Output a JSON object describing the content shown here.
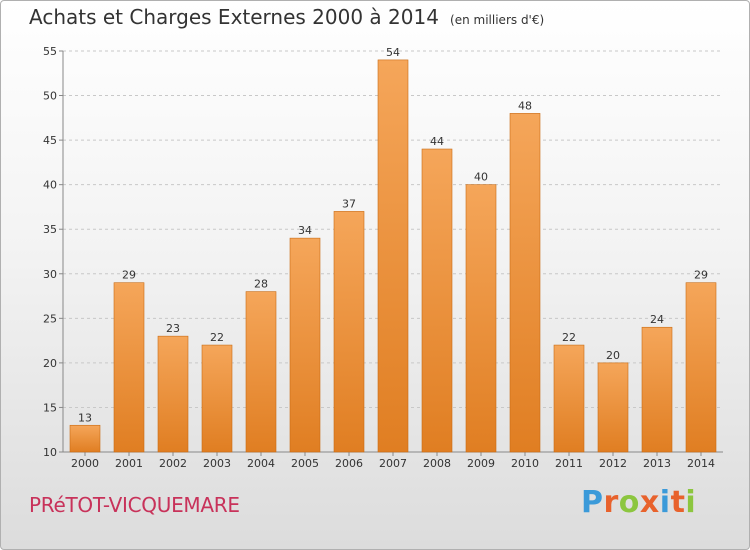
{
  "header": {
    "title": "Achats et Charges Externes 2000 à 2014",
    "unit": "(en milliers d'€)"
  },
  "footer": {
    "commune": "PRéTOT-VICQUEMARE",
    "logo": "Proxiti"
  },
  "colors": {
    "bar_top": "#f5a65a",
    "bar_bottom": "#e07e22",
    "bar_edge": "#c86c15",
    "grid": "#c8c8c8",
    "commune_text": "#c8325a",
    "logo_letters": [
      "#3b9ad9",
      "#e8622c",
      "#8cc63f",
      "#e8622c",
      "#3b9ad9",
      "#e8622c",
      "#8cc63f"
    ]
  },
  "chart_data": {
    "type": "bar",
    "title": "Achats et Charges Externes 2000 à 2014",
    "subtitle": "(en milliers d'€)",
    "xlabel": "",
    "ylabel": "",
    "categories": [
      "2000",
      "2001",
      "2002",
      "2003",
      "2004",
      "2005",
      "2006",
      "2007",
      "2008",
      "2009",
      "2010",
      "2011",
      "2012",
      "2013",
      "2014"
    ],
    "values": [
      13,
      29,
      23,
      22,
      28,
      34,
      37,
      54,
      44,
      40,
      48,
      22,
      20,
      24,
      29
    ],
    "ylim": [
      10,
      55
    ],
    "yticks": [
      10,
      15,
      20,
      25,
      30,
      35,
      40,
      45,
      50,
      55
    ],
    "grid": true,
    "data_labels": true
  }
}
